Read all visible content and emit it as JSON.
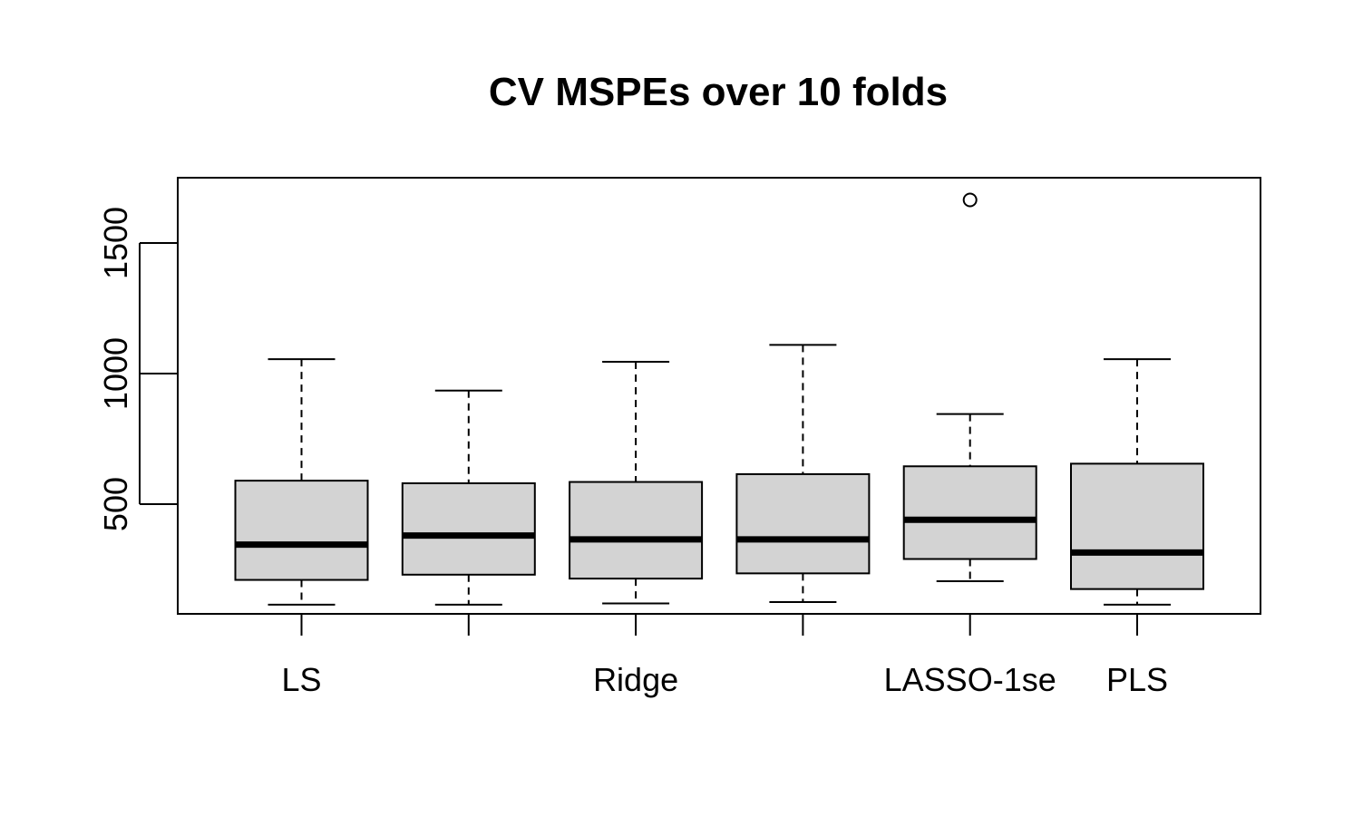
{
  "chart_data": {
    "type": "boxplot",
    "title": "CV MSPEs over 10 folds",
    "xlabel": "",
    "ylabel": "",
    "categories": [
      "LS",
      "",
      "Ridge",
      "",
      "LASSO-1se",
      "PLS"
    ],
    "ylim": [
      80,
      1750
    ],
    "yticks": [
      500,
      1000,
      1500
    ],
    "grid": false,
    "legend": "none",
    "colors": {
      "box_fill": "#d3d3d3",
      "stroke": "#000000"
    },
    "boxes": [
      {
        "min": 115,
        "q1": 210,
        "median": 345,
        "q3": 590,
        "max": 1055,
        "outliers": []
      },
      {
        "min": 115,
        "q1": 230,
        "median": 380,
        "q3": 580,
        "max": 935,
        "outliers": []
      },
      {
        "min": 120,
        "q1": 215,
        "median": 365,
        "q3": 585,
        "max": 1045,
        "outliers": []
      },
      {
        "min": 125,
        "q1": 235,
        "median": 365,
        "q3": 615,
        "max": 1110,
        "outliers": []
      },
      {
        "min": 205,
        "q1": 290,
        "median": 440,
        "q3": 645,
        "max": 845,
        "outliers": [
          1665
        ]
      },
      {
        "min": 115,
        "q1": 175,
        "median": 315,
        "q3": 655,
        "max": 1055,
        "outliers": []
      }
    ]
  }
}
